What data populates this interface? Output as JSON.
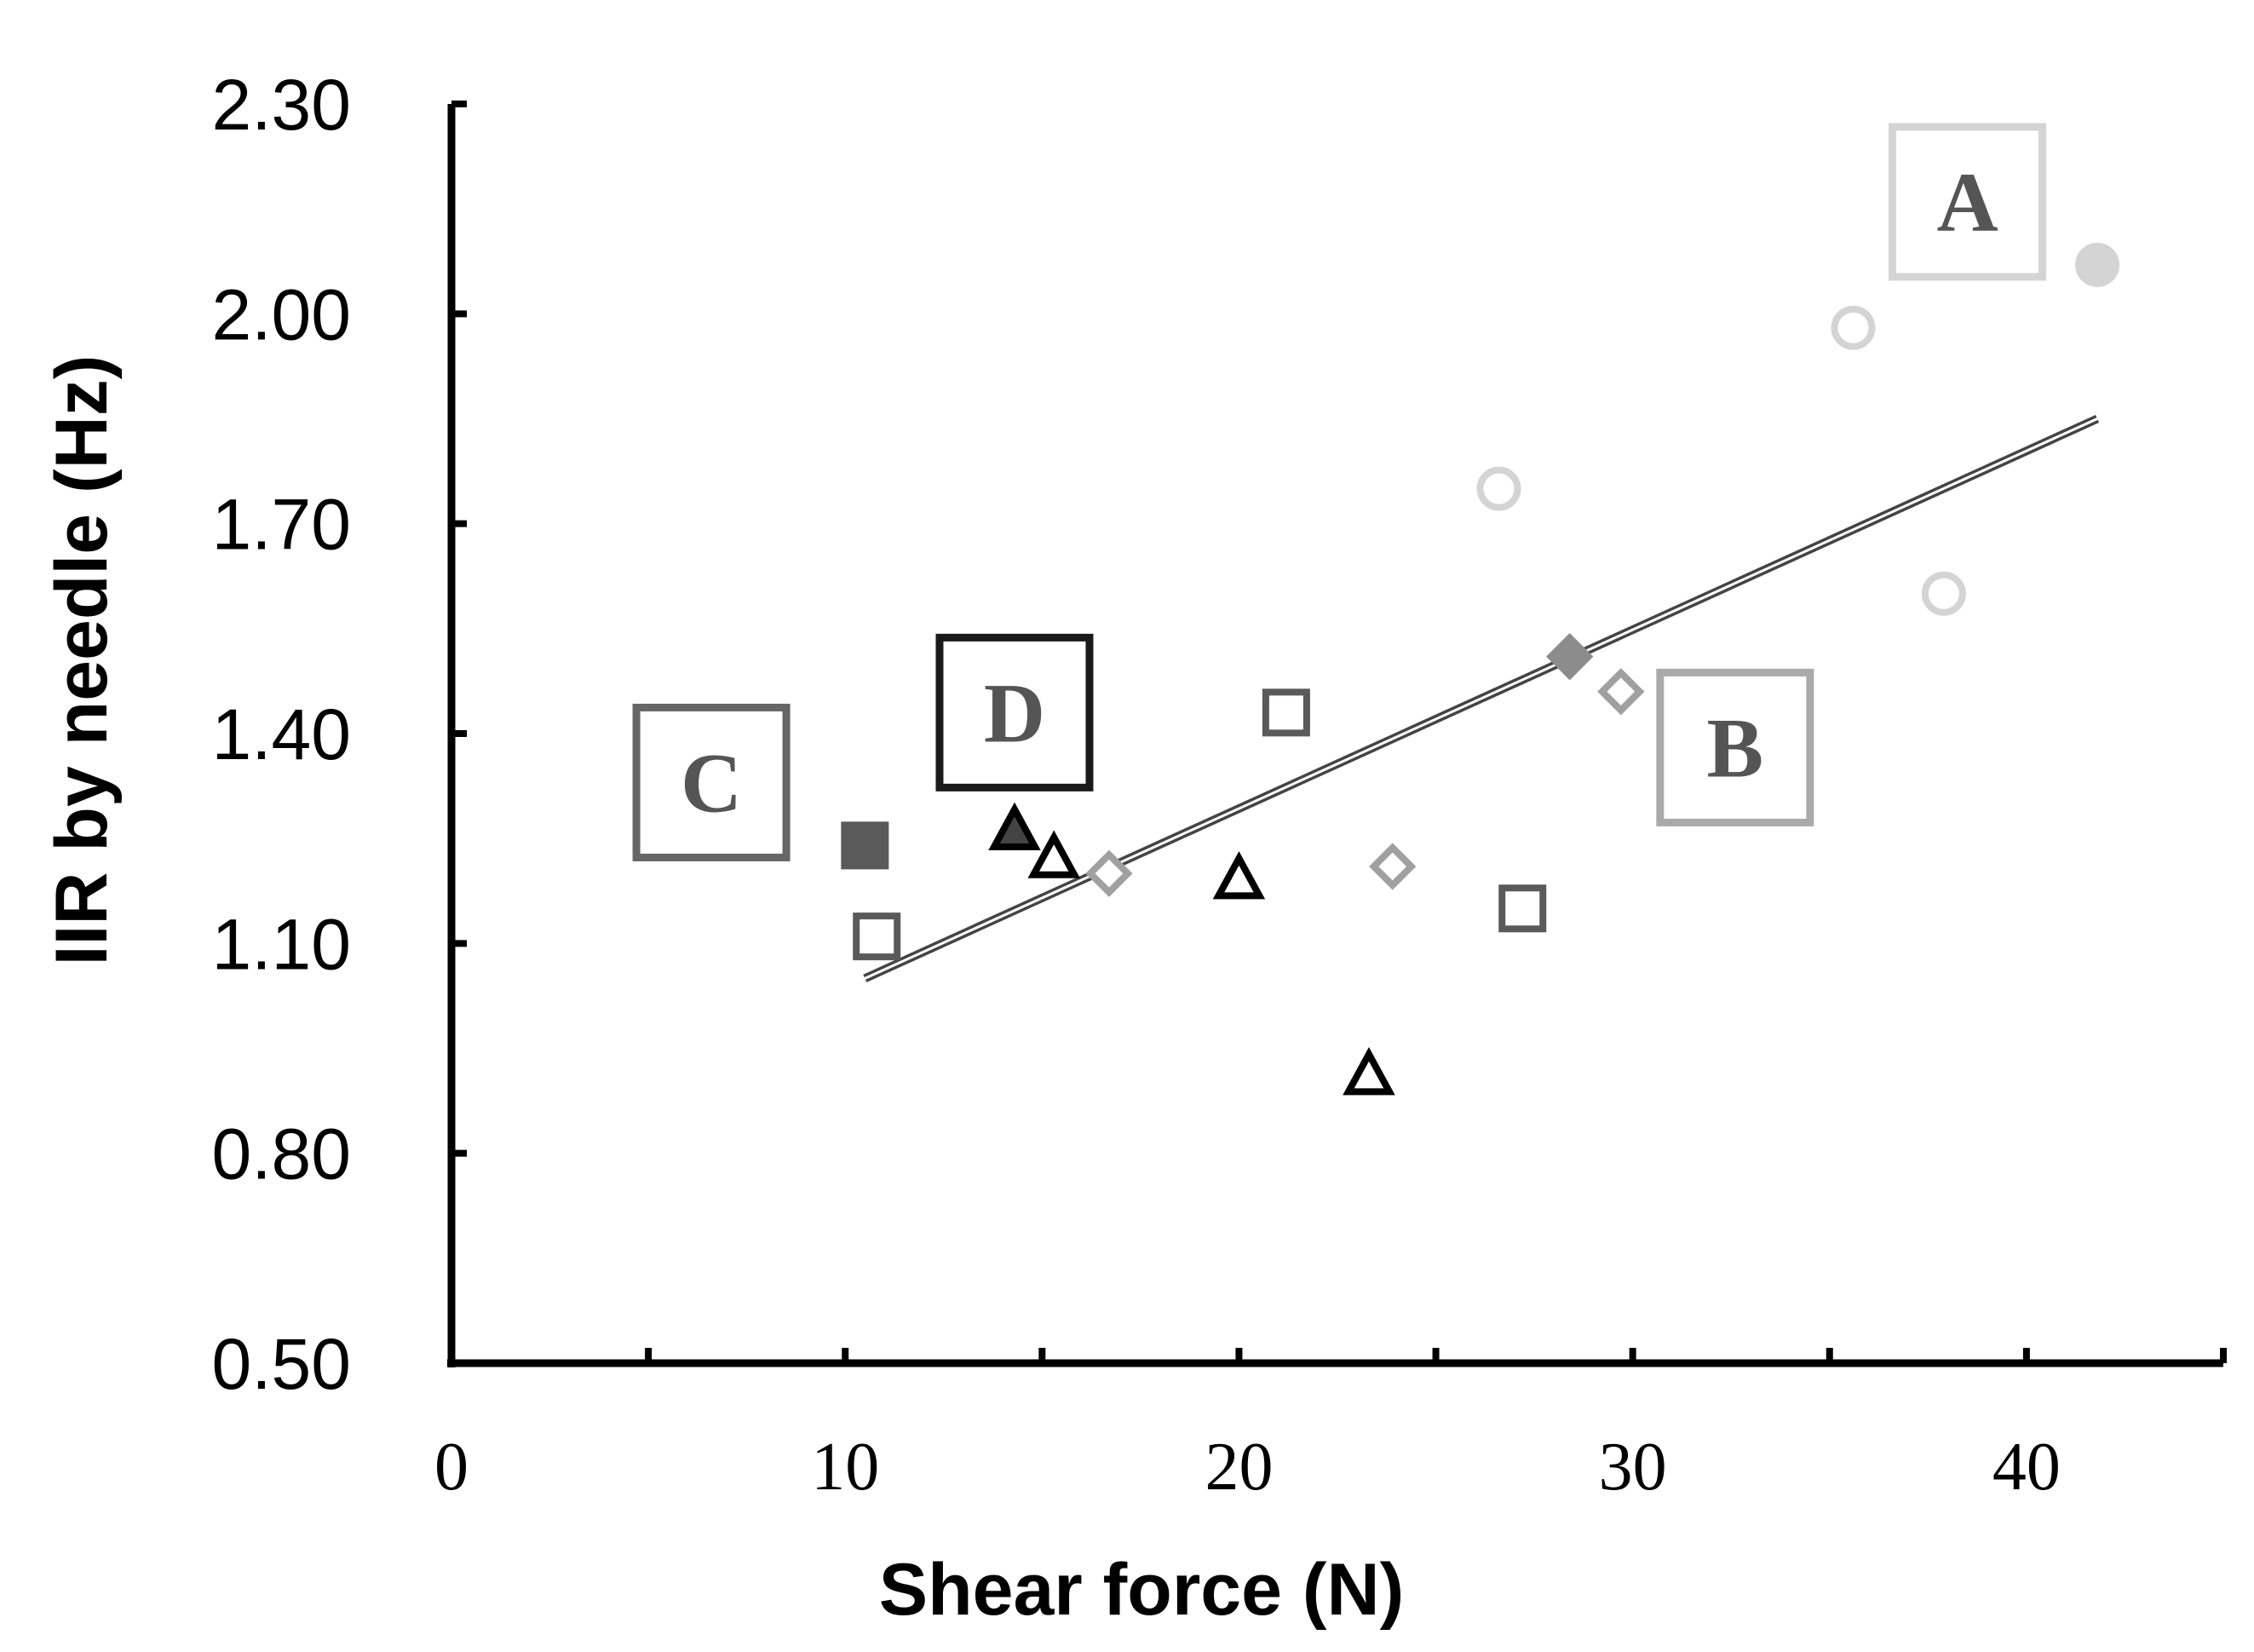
{
  "chart_data": {
    "type": "scatter",
    "xlabel": "Shear force (N)",
    "ylabel": "IIR by needle (Hz)",
    "xlim": [
      0,
      45
    ],
    "ylim": [
      0.5,
      2.3
    ],
    "xticks": [
      0,
      10,
      20,
      30,
      40
    ],
    "xtick_labels": [
      "0",
      "10",
      "20",
      "30",
      "40"
    ],
    "yticks": [
      0.5,
      0.8,
      1.1,
      1.4,
      1.7,
      2.0,
      2.3
    ],
    "ytick_labels": [
      "0.50",
      "0.80",
      "1.10",
      "1.40",
      "1.70",
      "2.00",
      "2.30"
    ],
    "grid": false,
    "groups": [
      {
        "label": "A",
        "x": 38.5,
        "y": 2.16,
        "color": "#d4d4d4"
      },
      {
        "label": "B",
        "x": 32.6,
        "y": 1.38,
        "color": "#aaaaaa"
      },
      {
        "label": "C",
        "x": 6.6,
        "y": 1.33,
        "color": "#666666"
      },
      {
        "label": "D",
        "x": 14.3,
        "y": 1.43,
        "color": "#1a1a1a"
      }
    ],
    "series": [
      {
        "group": "A",
        "marker": "circle",
        "color": "#d4d4d4",
        "filled": false,
        "points": [
          [
            26.6,
            1.75
          ],
          [
            35.6,
            1.98
          ],
          [
            37.9,
            1.6
          ]
        ]
      },
      {
        "group": "A",
        "marker": "circle",
        "color": "#d4d4d4",
        "filled": true,
        "points": [
          [
            41.8,
            2.07
          ]
        ]
      },
      {
        "group": "B",
        "marker": "diamond",
        "color": "#a0a0a0",
        "filled": false,
        "points": [
          [
            16.7,
            1.2
          ],
          [
            23.9,
            1.21
          ],
          [
            29.7,
            1.46
          ]
        ]
      },
      {
        "group": "B",
        "marker": "diamond",
        "color": "#8c8c8c",
        "filled": true,
        "points": [
          [
            28.4,
            1.51
          ]
        ]
      },
      {
        "group": "C",
        "marker": "square",
        "color": "#5a5a5a",
        "filled": false,
        "points": [
          [
            10.8,
            1.11
          ],
          [
            21.2,
            1.43
          ],
          [
            27.2,
            1.15
          ]
        ]
      },
      {
        "group": "C",
        "marker": "square",
        "color": "#5a5a5a",
        "filled": true,
        "points": [
          [
            10.5,
            1.24
          ]
        ]
      },
      {
        "group": "D",
        "marker": "triangle",
        "color": "#000000",
        "filled": false,
        "points": [
          [
            15.3,
            1.22
          ],
          [
            20.0,
            1.19
          ],
          [
            23.3,
            0.91
          ]
        ]
      },
      {
        "group": "D",
        "marker": "triangle",
        "color": "#000000",
        "filled": true,
        "points": [
          [
            14.3,
            1.26
          ]
        ]
      }
    ],
    "trendline": {
      "x": [
        10.5,
        41.8
      ],
      "y": [
        1.05,
        1.85
      ],
      "color": "#444444"
    }
  }
}
